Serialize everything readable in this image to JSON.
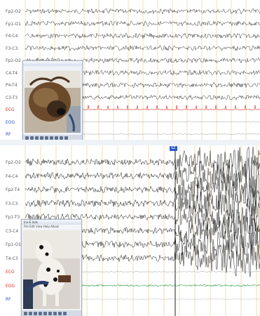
{
  "panels": {
    "top": {
      "channels": [
        {
          "label": "Fp2-O2",
          "color": "#555a60"
        },
        {
          "label": "Fp1-O1",
          "color": "#555a60"
        },
        {
          "label": "F4-C4",
          "color": "#555a60"
        },
        {
          "label": "F3-C3",
          "color": "#555a60"
        },
        {
          "label": "Fp2-O2",
          "color": "#555a60"
        },
        {
          "label": "C4-T4",
          "color": "#555a60"
        },
        {
          "label": "P4-T4",
          "color": "#555a60"
        },
        {
          "label": "C3-T3",
          "color": "#555a60"
        },
        {
          "label": "ECG",
          "color": "#d9312a"
        },
        {
          "label": "EOG",
          "color": "#2f4fc2"
        },
        {
          "label": "RF",
          "color": "#2f4fc2"
        }
      ],
      "video": {
        "subject_icon": "sleeping-dog-video-frame",
        "controls": [
          "skip-start-icon",
          "step-back-icon",
          "rewind-icon",
          "play-back-icon",
          "pause-icon",
          "play-icon",
          "fast-forward-icon",
          "step-forward-icon",
          "skip-end-icon"
        ]
      }
    },
    "bottom": {
      "marker_label": "SZ",
      "channels": [
        {
          "label": "Fp2-O2",
          "color": "#555a60"
        },
        {
          "label": "F4-C4",
          "color": "#555a60"
        },
        {
          "label": "Fp2-T4",
          "color": "#555a60"
        },
        {
          "label": "F3-C3",
          "color": "#555a60"
        },
        {
          "label": "Fp1-T3",
          "color": "#555a60"
        },
        {
          "label": "C3-C4",
          "color": "#555a60"
        },
        {
          "label": "Fp1-O1",
          "color": "#555a60"
        },
        {
          "label": "T4-C3",
          "color": "#555a60"
        },
        {
          "label": "ECG",
          "color": "#d9312a"
        },
        {
          "label": "EOG",
          "color": "#d9312a"
        },
        {
          "label": "RF",
          "color": "#2f4fc2"
        }
      ],
      "video": {
        "title": "Inn-E Vids",
        "menu": "File Edit View Help About",
        "subject_icon": "dalmatian-video-frame",
        "controls": [
          "skip-start-icon",
          "step-back-icon",
          "rewind-icon",
          "play-back-icon",
          "pause-icon",
          "play-icon",
          "fast-forward-icon",
          "step-forward-icon",
          "skip-end-icon"
        ]
      }
    }
  },
  "colors": {
    "trace": "#1b1b1b",
    "ecg": "#d9312a",
    "eog": "#2fa04a",
    "grid": "#e8c98a",
    "accent": "#2b59c3"
  }
}
